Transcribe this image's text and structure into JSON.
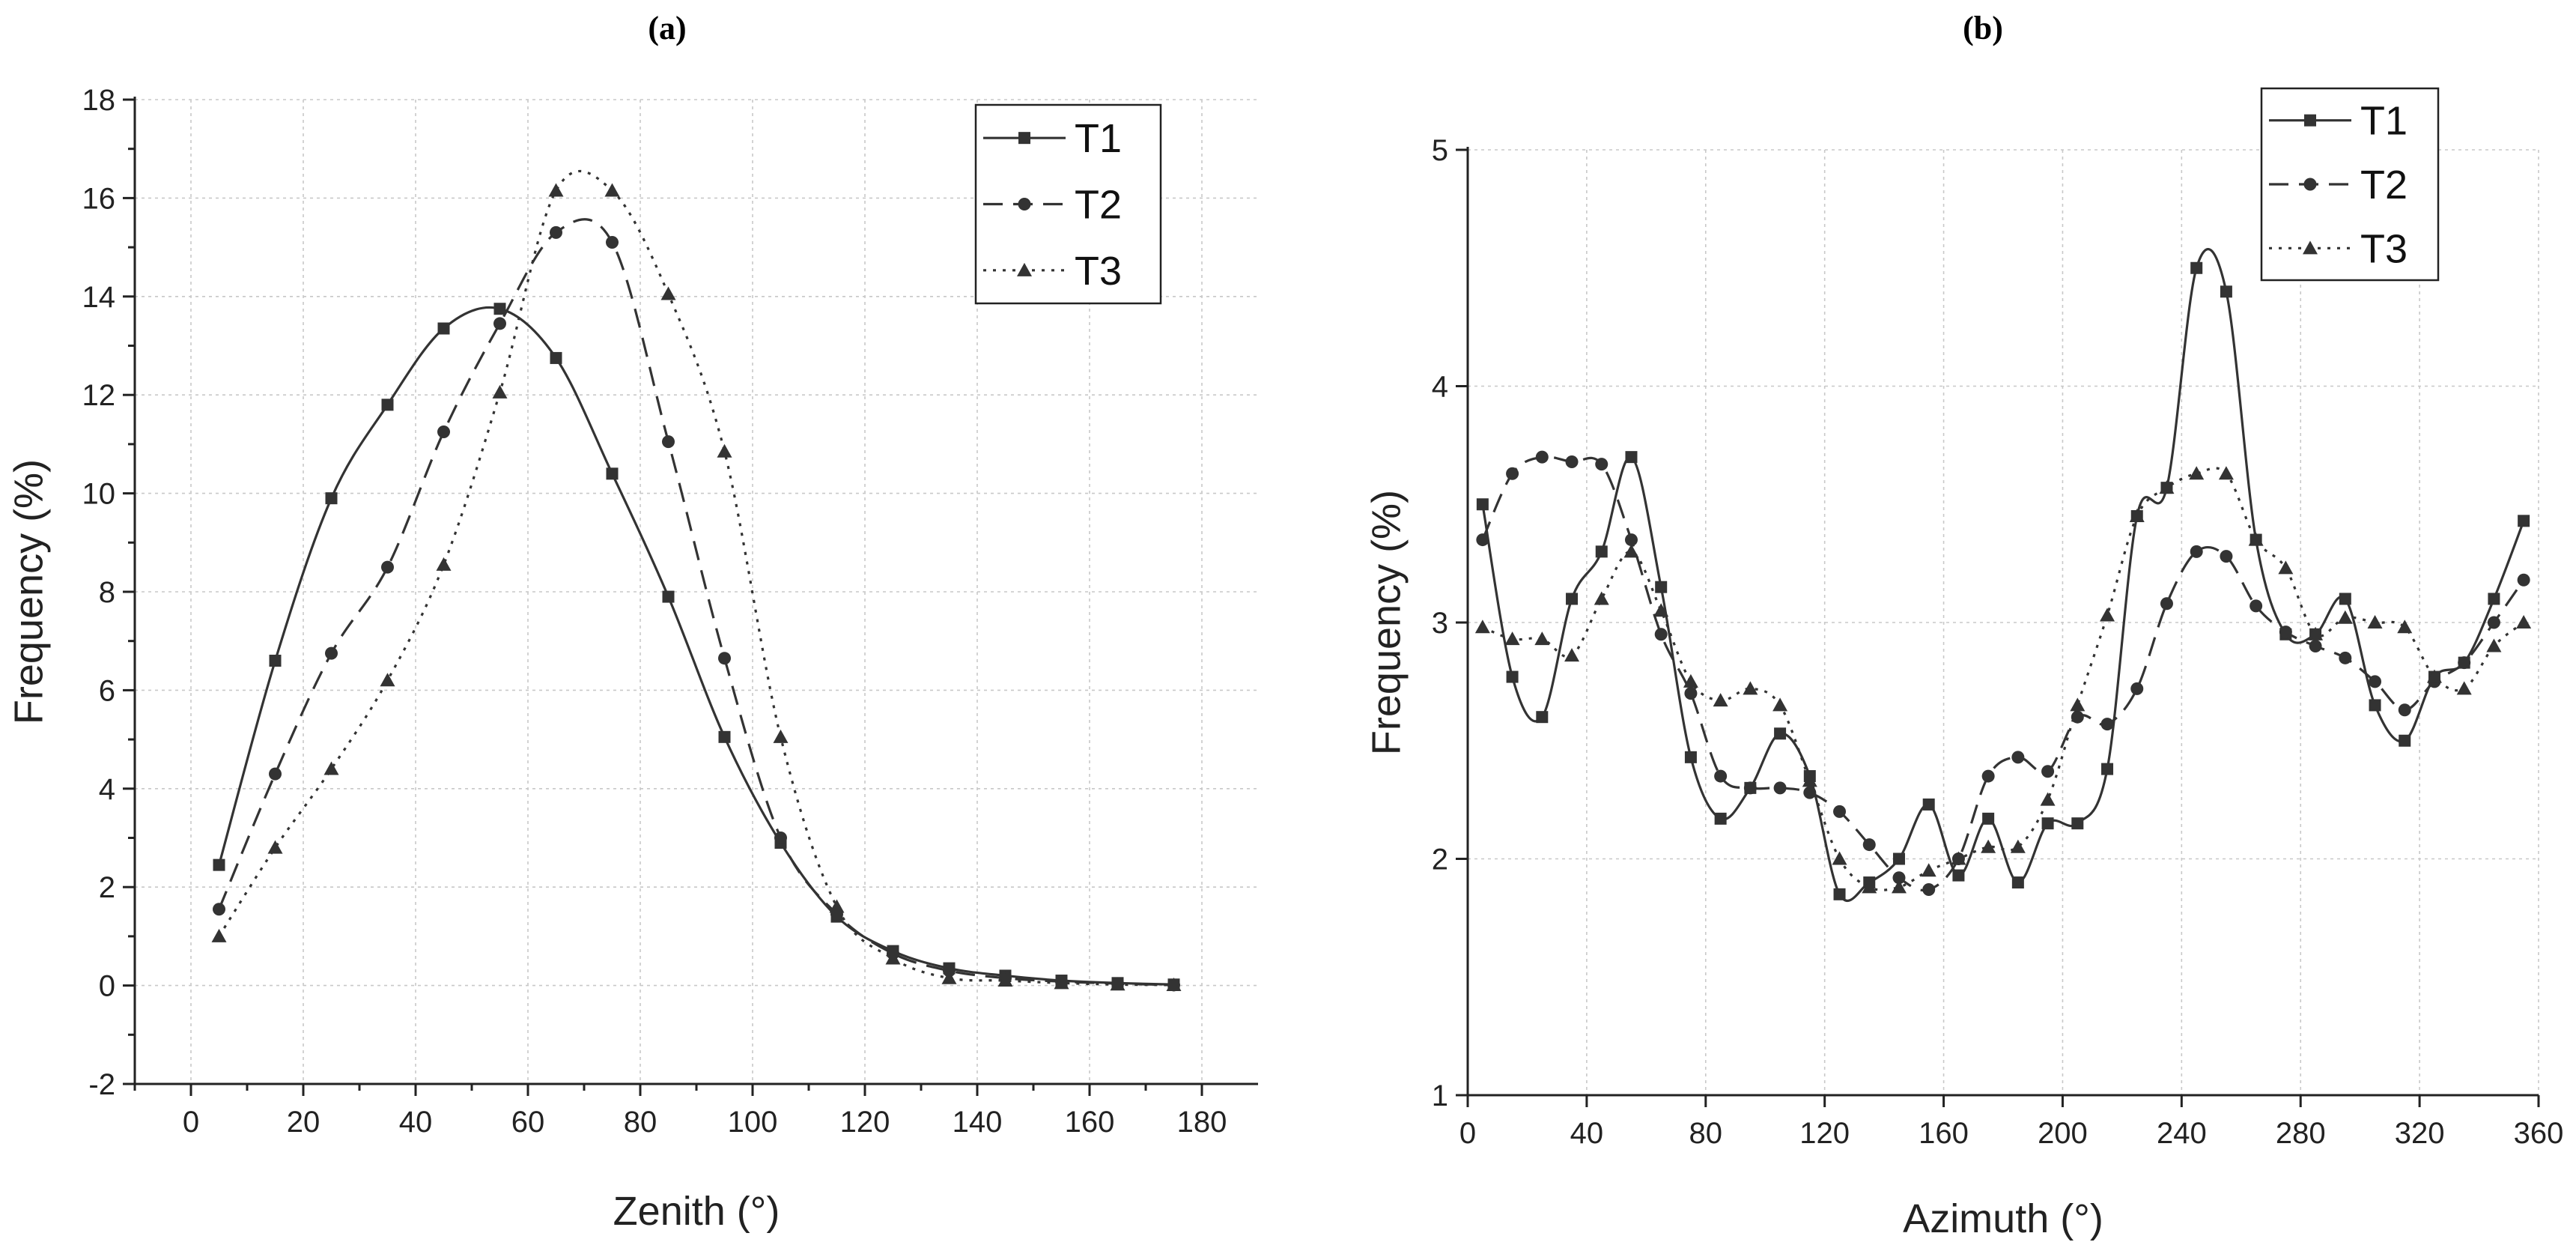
{
  "chart_data": [
    {
      "panel": "(a)",
      "type": "line",
      "xlabel": "Zenith (°)",
      "ylabel": "Frequency (%)",
      "xlim": [
        -10,
        190
      ],
      "ylim": [
        -2,
        18
      ],
      "xticks": [
        0,
        20,
        40,
        60,
        80,
        100,
        120,
        140,
        160,
        180
      ],
      "yticks": [
        -2,
        0,
        2,
        4,
        6,
        8,
        10,
        12,
        14,
        16,
        18
      ],
      "grid": true,
      "legend": "top-right",
      "x": [
        5,
        15,
        25,
        35,
        45,
        55,
        65,
        75,
        85,
        95,
        105,
        115,
        125,
        135,
        145,
        155,
        165,
        175
      ],
      "series": [
        {
          "name": "T1",
          "marker": "square",
          "dash": "solid",
          "values": [
            2.45,
            6.6,
            9.9,
            11.8,
            13.35,
            13.75,
            12.75,
            10.4,
            7.9,
            5.05,
            2.9,
            1.4,
            0.7,
            0.35,
            0.2,
            0.1,
            0.05,
            0.02
          ]
        },
        {
          "name": "T2",
          "marker": "circle",
          "dash": "dashed",
          "values": [
            1.55,
            4.3,
            6.75,
            8.5,
            11.25,
            13.45,
            15.3,
            15.1,
            11.05,
            6.65,
            3.0,
            1.45,
            0.65,
            0.3,
            0.15,
            0.08,
            0.04,
            0.01
          ]
        },
        {
          "name": "T3",
          "marker": "triangle",
          "dash": "dotted",
          "values": [
            1.0,
            2.8,
            4.4,
            6.2,
            8.55,
            12.05,
            16.15,
            16.15,
            14.05,
            10.85,
            5.05,
            1.6,
            0.55,
            0.15,
            0.1,
            0.05,
            0.02,
            0.01
          ]
        }
      ]
    },
    {
      "panel": "(b)",
      "type": "line",
      "xlabel": "Azimuth (°)",
      "ylabel": "Frequency (%)",
      "xlim": [
        0,
        360
      ],
      "ylim": [
        1,
        5
      ],
      "xticks": [
        0,
        40,
        80,
        120,
        160,
        200,
        240,
        280,
        320,
        360
      ],
      "yticks": [
        1,
        2,
        3,
        4,
        5
      ],
      "grid": true,
      "legend": "top-right",
      "x": [
        5,
        15,
        25,
        35,
        45,
        55,
        65,
        75,
        85,
        95,
        105,
        115,
        125,
        135,
        145,
        155,
        165,
        175,
        185,
        195,
        205,
        215,
        225,
        235,
        245,
        255,
        265,
        275,
        285,
        295,
        305,
        315,
        325,
        335,
        345,
        355
      ],
      "series": [
        {
          "name": "T1",
          "marker": "square",
          "dash": "solid",
          "values": [
            3.5,
            2.77,
            2.6,
            3.1,
            3.3,
            3.7,
            3.15,
            2.43,
            2.17,
            2.3,
            2.53,
            2.35,
            1.85,
            1.9,
            2.0,
            2.23,
            1.93,
            2.17,
            1.9,
            2.15,
            2.15,
            2.38,
            3.45,
            3.57,
            4.5,
            4.4,
            3.35,
            2.95,
            2.95,
            3.1,
            2.65,
            2.5,
            2.77,
            2.83,
            3.1,
            3.43
          ]
        },
        {
          "name": "T2",
          "marker": "circle",
          "dash": "dashed",
          "values": [
            3.35,
            3.63,
            3.7,
            3.68,
            3.67,
            3.35,
            2.95,
            2.7,
            2.35,
            2.3,
            2.3,
            2.28,
            2.2,
            2.06,
            1.92,
            1.87,
            2.0,
            2.35,
            2.43,
            2.37,
            2.6,
            2.57,
            2.72,
            3.08,
            3.3,
            3.28,
            3.07,
            2.96,
            2.9,
            2.85,
            2.75,
            2.63,
            2.75,
            2.83,
            3.0,
            3.18
          ]
        },
        {
          "name": "T3",
          "marker": "triangle",
          "dash": "dotted",
          "values": [
            2.98,
            2.93,
            2.93,
            2.86,
            3.1,
            3.3,
            3.05,
            2.75,
            2.67,
            2.72,
            2.65,
            2.33,
            2.0,
            1.88,
            1.88,
            1.95,
            2.0,
            2.05,
            2.05,
            2.25,
            2.65,
            3.03,
            3.45,
            3.57,
            3.63,
            3.63,
            3.35,
            3.23,
            2.95,
            3.02,
            3.0,
            2.98,
            2.77,
            2.72,
            2.9,
            3.0
          ]
        }
      ]
    }
  ],
  "colors": {
    "line": "#333333",
    "grid": "#c8c8c8",
    "axis": "#222222"
  }
}
